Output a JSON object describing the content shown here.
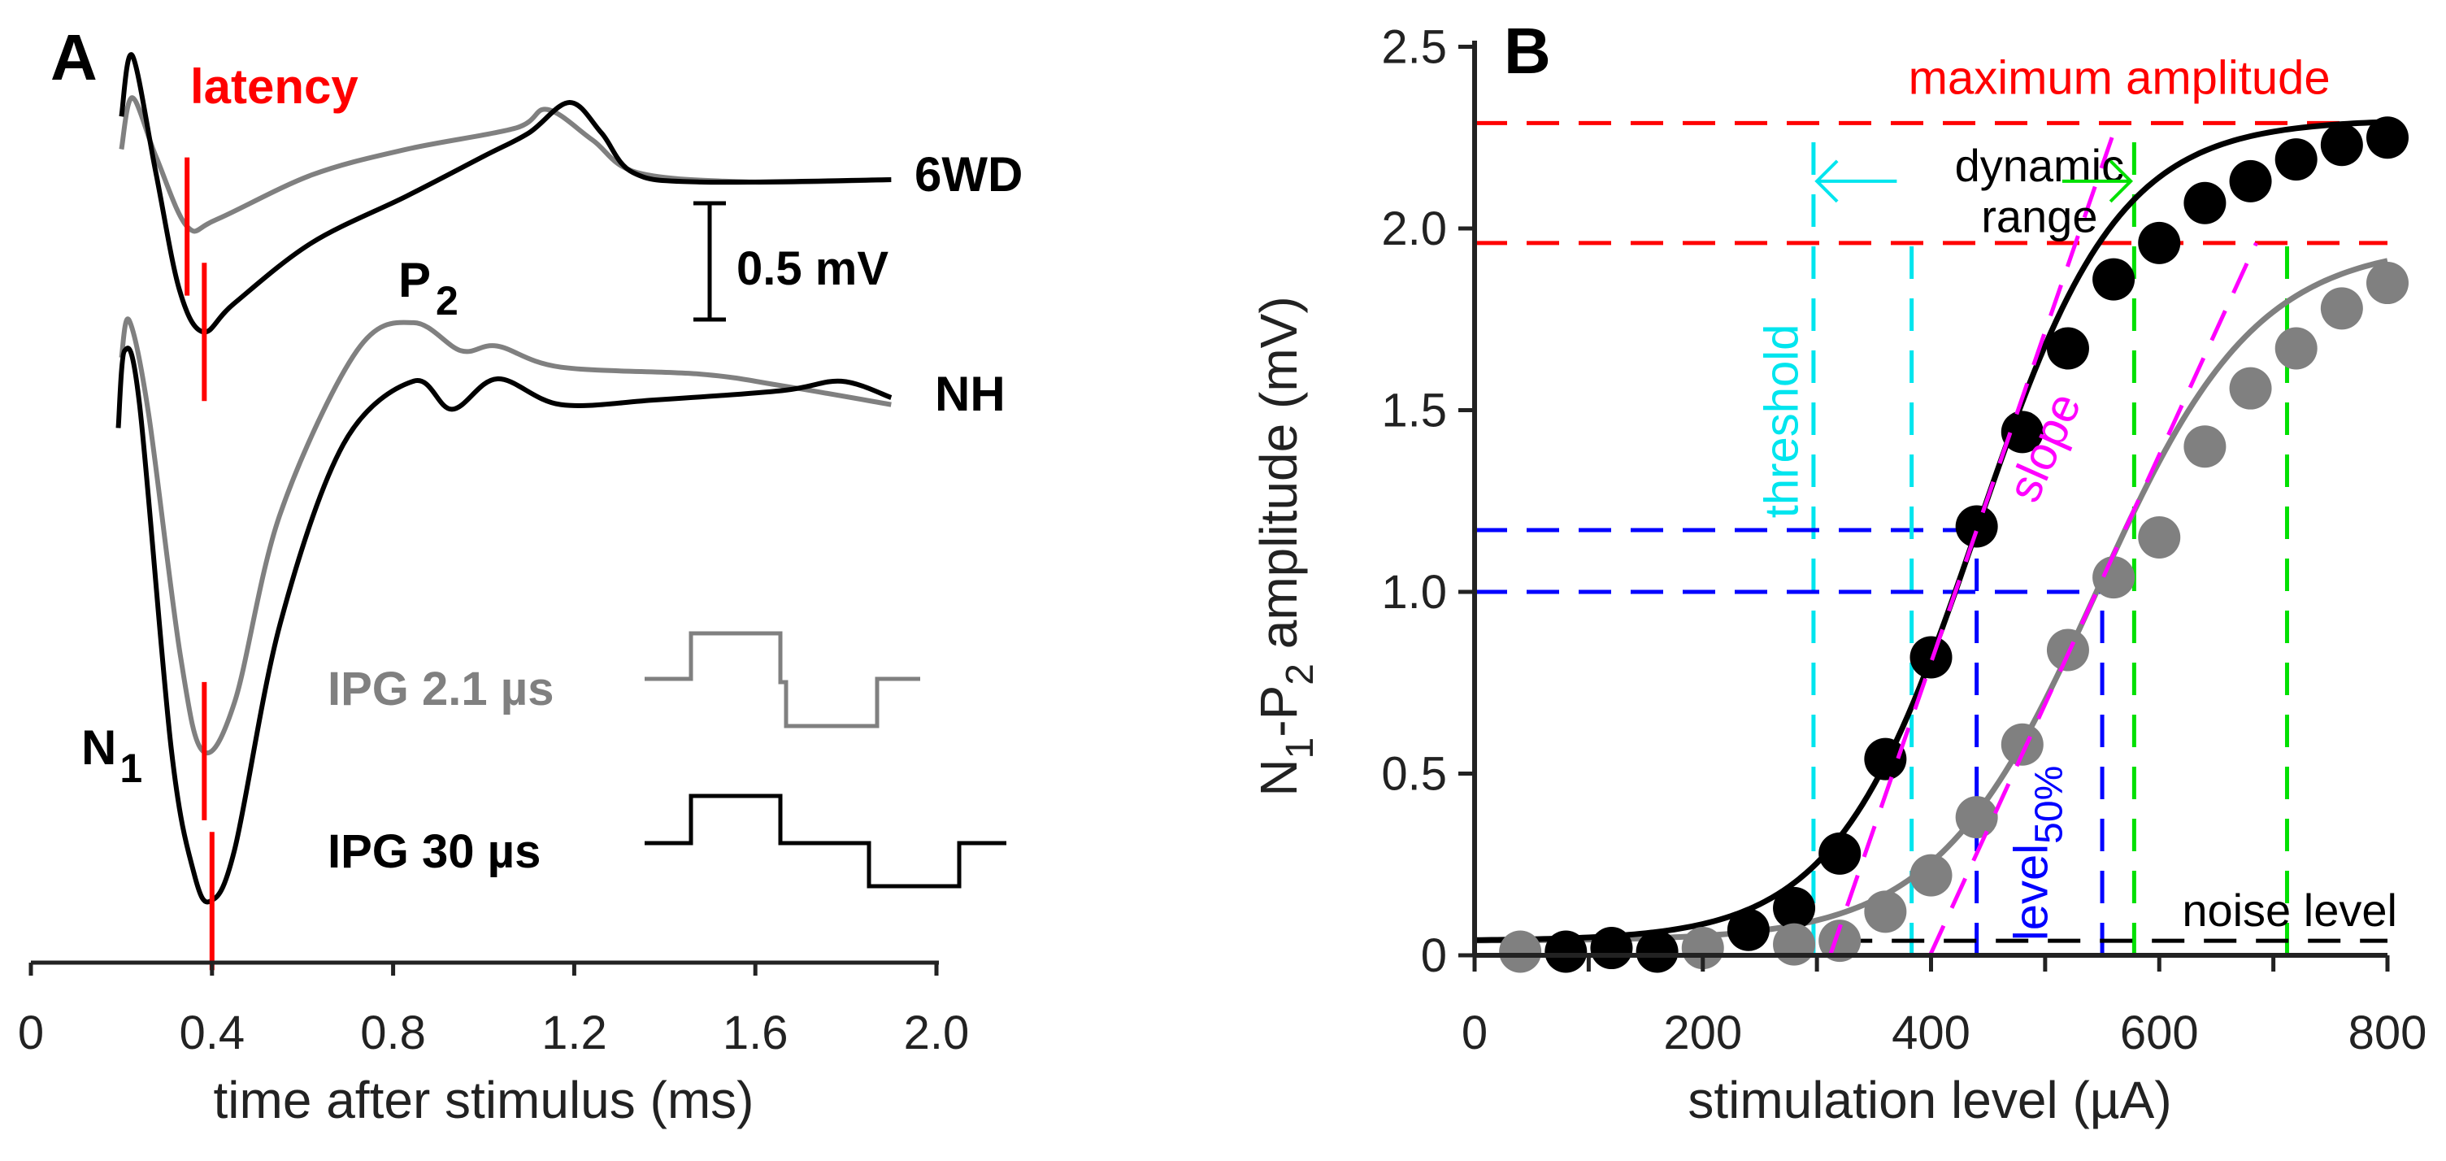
{
  "chart_data": [
    {
      "type": "line",
      "panel": "A",
      "xlabel": "time after stimulus (ms)",
      "xlim": [
        0,
        2.0
      ],
      "xticks": [
        "0",
        "0.4",
        "0.8",
        "1.2",
        "1.6",
        "2.0"
      ],
      "annotations": {
        "latency": "latency",
        "p": "P",
        "p_sub": "2",
        "n": "N",
        "n_sub": "1",
        "scale_bar": "0.5 mV",
        "ipg_gray": "IPG 2.1 µs",
        "ipg_black": "IPG 30 µs"
      },
      "scale_bar_mV": 0.5,
      "groups": [
        {
          "name": "6WD",
          "series": [
            {
              "name": "IPG 30 µs",
              "color": "#000000",
              "latency_ms": 0.383,
              "t": [
                0.2,
                0.224,
                0.276,
                0.328,
                0.38,
                0.448,
                0.62,
                0.83,
                1.0,
                1.1,
                1.19,
                1.26,
                1.33,
                1.48,
                1.9
              ],
              "mV": [
                0.27,
                0.53,
                0.03,
                -0.47,
                -0.65,
                -0.53,
                -0.27,
                -0.07,
                0.1,
                0.2,
                0.33,
                0.2,
                0.03,
                -0.01,
                0
              ]
            },
            {
              "name": "IPG 2.1 µs",
              "color": "#808080",
              "latency_ms": 0.345,
              "t": [
                0.2,
                0.224,
                0.276,
                0.345,
                0.41,
                0.62,
                0.83,
                1.07,
                1.14,
                1.24,
                1.34,
                1.59,
                1.9
              ],
              "mV": [
                0.13,
                0.35,
                0.1,
                -0.2,
                -0.17,
                0.02,
                0.13,
                0.22,
                0.3,
                0.17,
                0.03,
                -0.01,
                0
              ]
            }
          ]
        },
        {
          "name": "NH",
          "series": [
            {
              "name": "IPG 30 µs",
              "color": "#000000",
              "latency_ms": 0.4,
              "t": [
                0.193,
                0.207,
                0.24,
                0.31,
                0.36,
                0.397,
                0.45,
                0.55,
                0.69,
                0.845,
                0.93,
                1.03,
                1.17,
                1.38,
                1.66,
                1.79,
                1.9
              ],
              "mV": [
                -0.13,
                0.2,
                -0.03,
                -1.5,
                -2.03,
                -2.15,
                -1.93,
                -0.97,
                -0.2,
                0.07,
                -0.05,
                0.08,
                -0.03,
                -0.01,
                0.03,
                0.07,
                0
              ]
            },
            {
              "name": "IPG 2.1 µs",
              "color": "#808080",
              "latency_ms": 0.383,
              "t": [
                0.2,
                0.217,
                0.26,
                0.33,
                0.38,
                0.45,
                0.55,
                0.72,
                0.845,
                0.95,
                1.03,
                1.17,
                1.48,
                1.66,
                1.9
              ],
              "mV": [
                0.17,
                0.33,
                -0.07,
                -1.1,
                -1.51,
                -1.3,
                -0.5,
                0.2,
                0.32,
                0.2,
                0.22,
                0.13,
                0.1,
                0.05,
                -0.03
              ]
            }
          ]
        }
      ]
    },
    {
      "type": "scatter",
      "panel": "B",
      "xlabel": "stimulation level (µA)",
      "ylabel_parts": [
        "N",
        "1",
        "-P",
        "2",
        " amplitude (mV)"
      ],
      "xlim": [
        0,
        800
      ],
      "ylim": [
        0,
        2.5
      ],
      "xticks": [
        "0",
        "200",
        "400",
        "600",
        "800"
      ],
      "yticks": [
        "0",
        "0.5",
        "1.0",
        "1.5",
        "2.0",
        "2.5"
      ],
      "series": [
        {
          "name": "IPG 30 µs",
          "color": "#000000",
          "x": [
            80,
            120,
            160,
            240,
            280,
            320,
            360,
            400,
            440,
            480,
            520,
            560,
            600,
            640,
            680,
            720,
            760,
            800
          ],
          "y": [
            0.01,
            0.02,
            0.01,
            0.07,
            0.13,
            0.28,
            0.54,
            0.82,
            1.18,
            1.44,
            1.67,
            1.86,
            1.96,
            2.07,
            2.13,
            2.19,
            2.23,
            2.25
          ],
          "fit": {
            "min": 0.04,
            "max": 2.3,
            "mid": 440,
            "width": 62
          },
          "max_amplitude": 2.29,
          "level50": 440,
          "threshold": 297,
          "dyn_upper": 578
        },
        {
          "name": "IPG 2.1 µs",
          "color": "#808080",
          "x": [
            40,
            200,
            280,
            320,
            360,
            400,
            440,
            480,
            520,
            560,
            600,
            640,
            680,
            720,
            760,
            800
          ],
          "y": [
            0.01,
            0.02,
            0.03,
            0.04,
            0.12,
            0.22,
            0.38,
            0.58,
            0.84,
            1.04,
            1.15,
            1.4,
            1.56,
            1.67,
            1.78,
            1.85
          ],
          "fit": {
            "min": 0.04,
            "max": 1.96,
            "mid": 545,
            "width": 70
          },
          "max_amplitude": 1.96,
          "level50": 550,
          "threshold": 383,
          "dyn_upper": 712
        }
      ],
      "noise_level": 0.04,
      "annotations": {
        "max_amp": "maximum amplitude",
        "dyn1": "dynamic",
        "dyn2": "range",
        "threshold": "threshold",
        "slope": "slope",
        "level": "level",
        "level_sub": "50%",
        "noise": "noise level"
      },
      "colors": {
        "max": "#ff0000",
        "threshold": "#00e5ee",
        "dynamic": "#00e000",
        "level50": "#0000ff",
        "slope": "#ff00ff"
      }
    }
  ],
  "panels": {
    "a": "A",
    "b": "B"
  }
}
